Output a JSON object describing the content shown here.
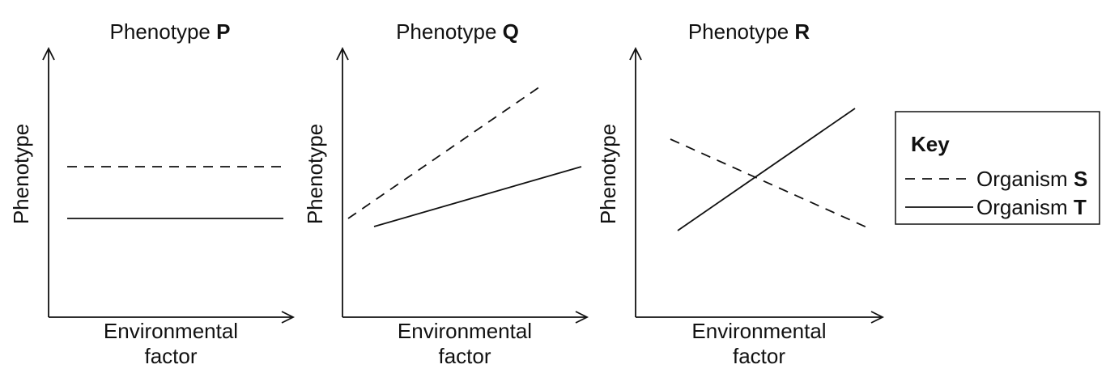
{
  "panels": [
    {
      "title": "Phenotype",
      "title_letter": "P",
      "y_label": "Phenotype",
      "x_label": [
        "Environmental",
        "factor"
      ]
    },
    {
      "title": "Phenotype",
      "title_letter": "Q",
      "y_label": "Phenotype",
      "x_label": [
        "Environmental",
        "factor"
      ]
    },
    {
      "title": "Phenotype",
      "title_letter": "R",
      "y_label": "Phenotype",
      "x_label": [
        "Environmental",
        "factor"
      ]
    }
  ],
  "key": {
    "title": "Key",
    "entries": [
      {
        "label": "Organism",
        "letter": "S"
      },
      {
        "label": "Organism",
        "letter": "T"
      }
    ]
  }
}
